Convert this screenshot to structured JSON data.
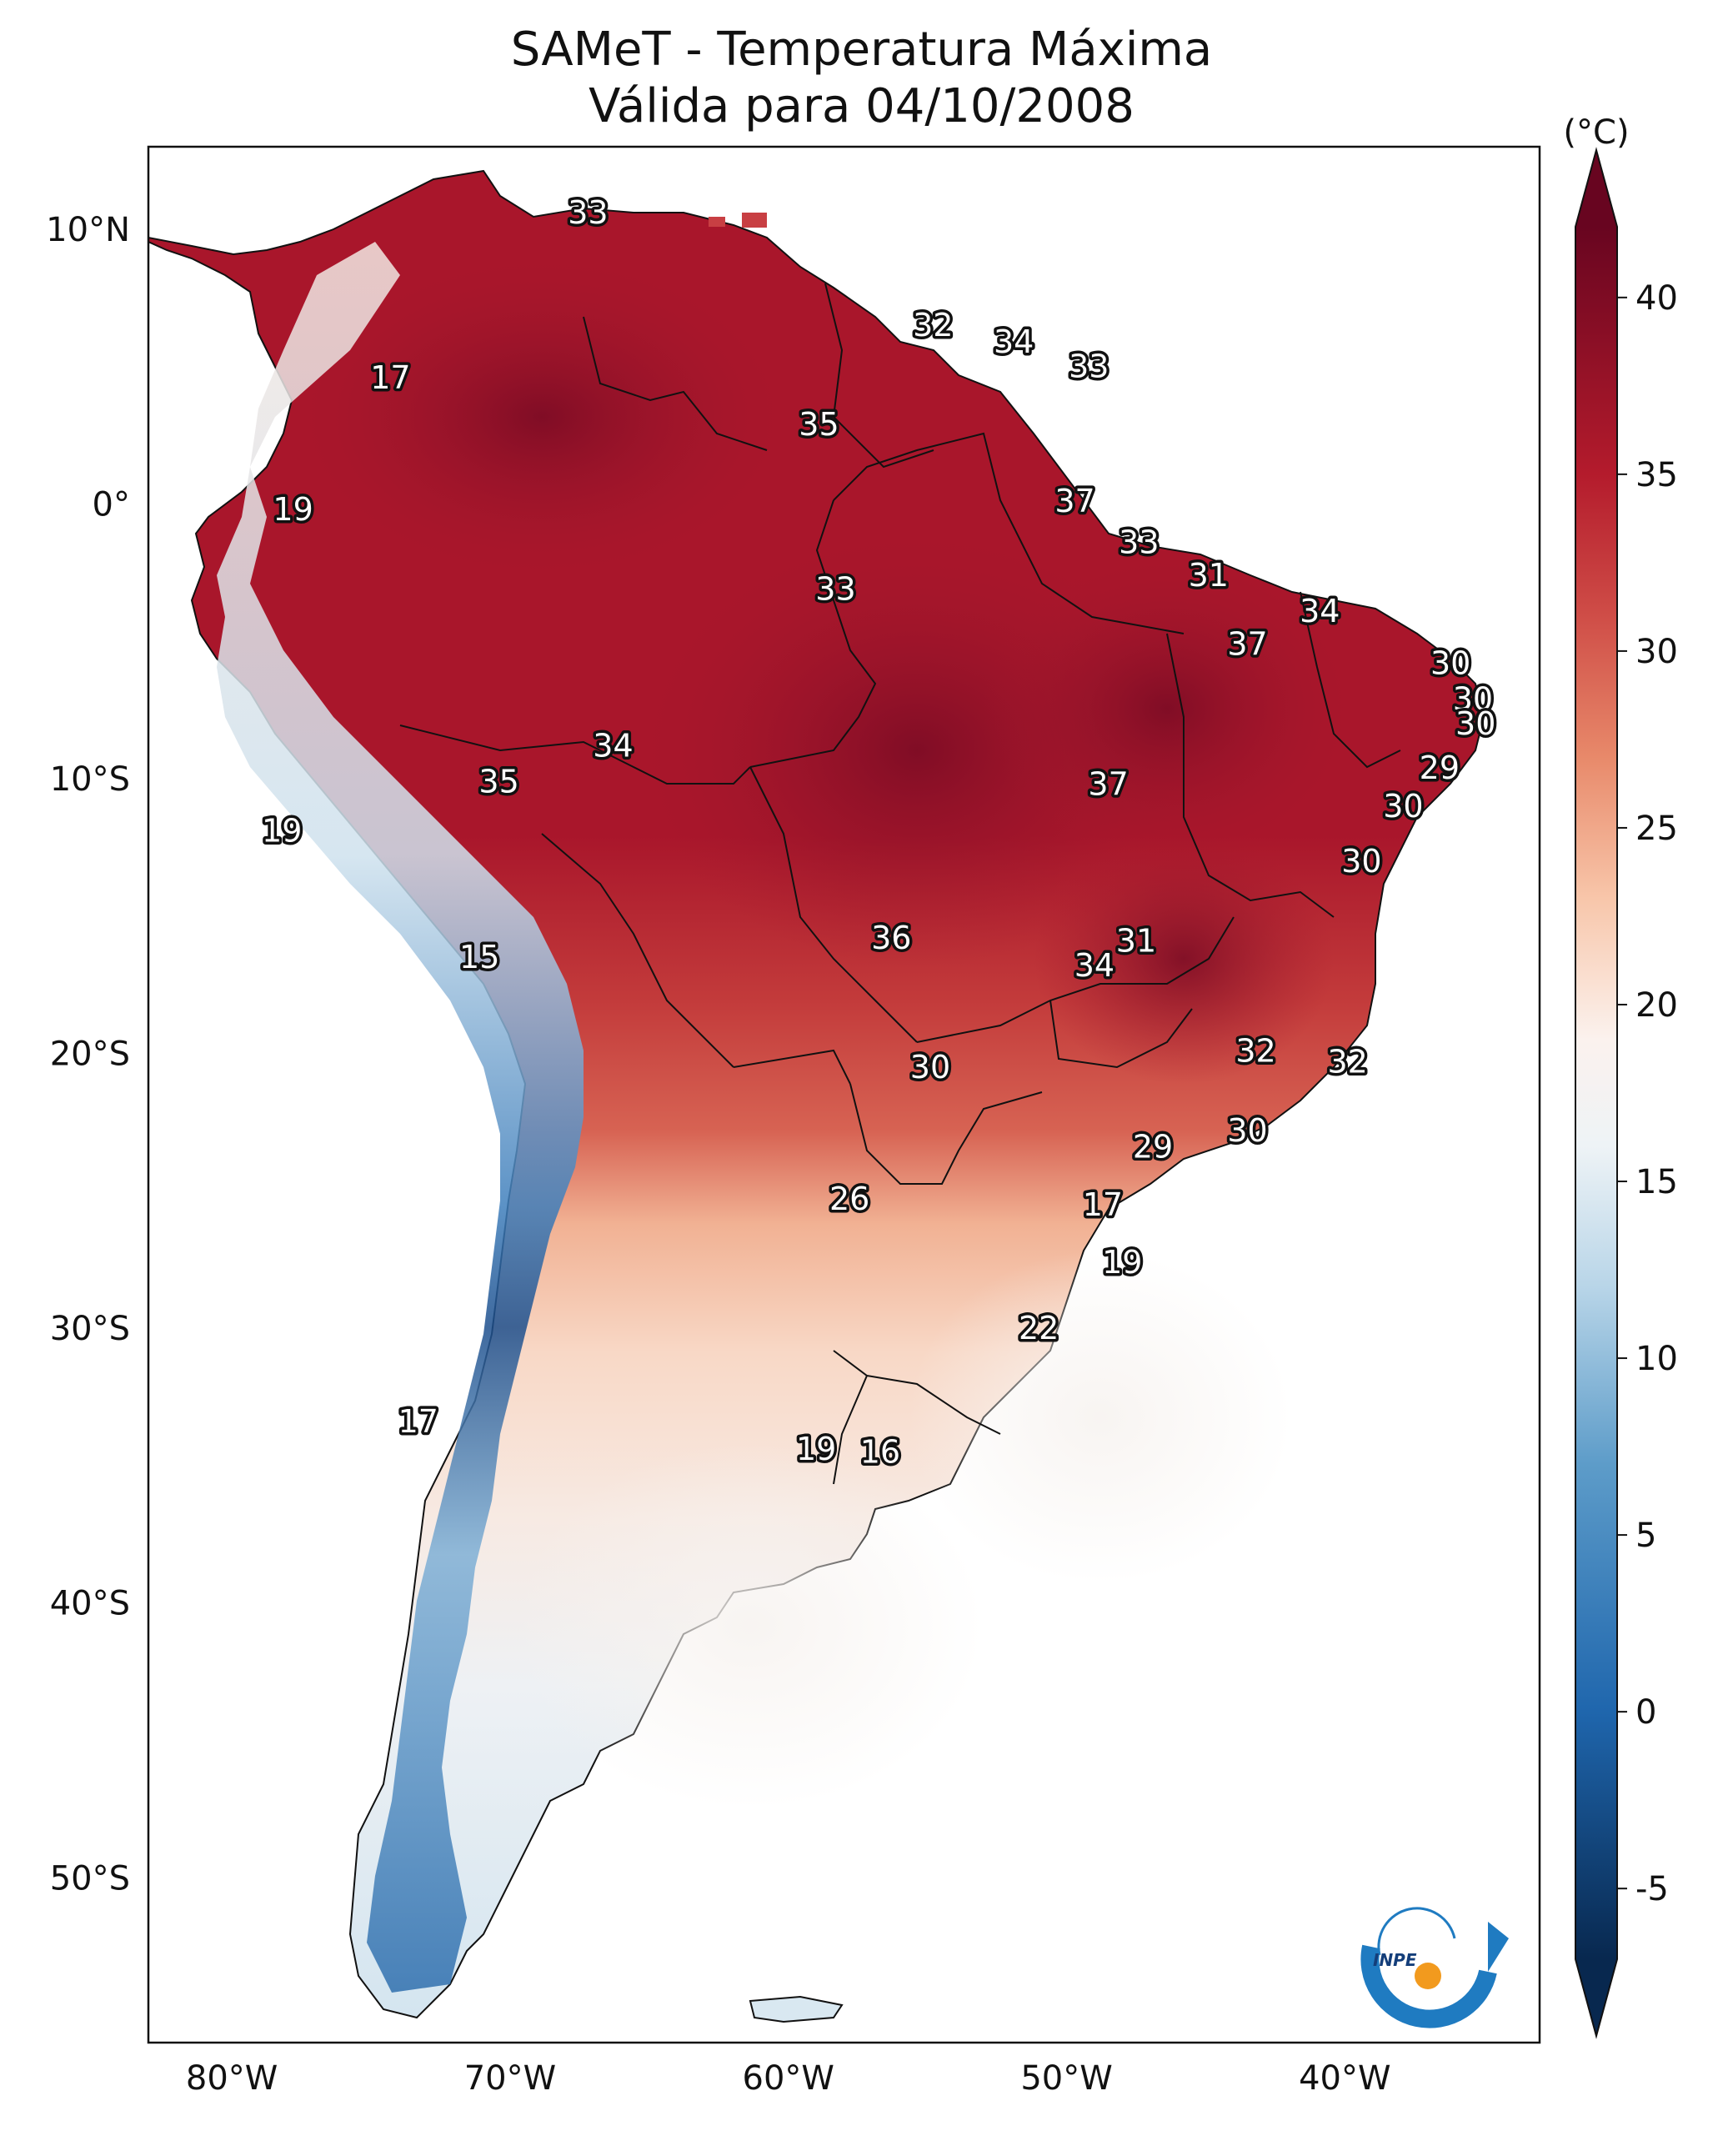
{
  "title": {
    "line1": "SAMeT - Temperatura Máxima",
    "line2": "Válida para 04/10/2008"
  },
  "map": {
    "lon_ticks": [
      "80°W",
      "70°W",
      "60°W",
      "50°W",
      "40°W"
    ],
    "lat_ticks": [
      "10°N",
      "0°",
      "10°S",
      "20°S",
      "30°S",
      "40°S",
      "50°S"
    ],
    "extent": {
      "lon_min": -83,
      "lon_max": -33,
      "lat_min": -56,
      "lat_max": 13
    },
    "point_labels": [
      {
        "lon": -67.2,
        "lat": 10.6,
        "value": "33"
      },
      {
        "lon": -74.3,
        "lat": 4.6,
        "value": "17"
      },
      {
        "lon": -77.8,
        "lat": -0.2,
        "value": "19"
      },
      {
        "lon": -54.8,
        "lat": 6.5,
        "value": "32"
      },
      {
        "lon": -51.9,
        "lat": 5.9,
        "value": "34"
      },
      {
        "lon": -49.2,
        "lat": 5.0,
        "value": "33"
      },
      {
        "lon": -58.9,
        "lat": 2.9,
        "value": "35"
      },
      {
        "lon": -49.7,
        "lat": 0.1,
        "value": "37"
      },
      {
        "lon": -47.4,
        "lat": -1.4,
        "value": "33"
      },
      {
        "lon": -44.9,
        "lat": -2.6,
        "value": "31"
      },
      {
        "lon": -58.3,
        "lat": -3.1,
        "value": "33"
      },
      {
        "lon": -40.9,
        "lat": -3.9,
        "value": "34"
      },
      {
        "lon": -43.5,
        "lat": -5.1,
        "value": "37"
      },
      {
        "lon": -36.2,
        "lat": -5.8,
        "value": "30"
      },
      {
        "lon": -35.4,
        "lat": -7.1,
        "value": "30"
      },
      {
        "lon": -35.3,
        "lat": -8.0,
        "value": "30"
      },
      {
        "lon": -66.3,
        "lat": -8.8,
        "value": "34"
      },
      {
        "lon": -70.4,
        "lat": -10.1,
        "value": "35"
      },
      {
        "lon": -48.5,
        "lat": -10.2,
        "value": "37"
      },
      {
        "lon": -36.6,
        "lat": -9.6,
        "value": "29"
      },
      {
        "lon": -37.9,
        "lat": -11.0,
        "value": "30"
      },
      {
        "lon": -39.4,
        "lat": -13.0,
        "value": "30"
      },
      {
        "lon": -78.2,
        "lat": -11.9,
        "value": "19"
      },
      {
        "lon": -56.3,
        "lat": -15.8,
        "value": "36"
      },
      {
        "lon": -47.5,
        "lat": -15.9,
        "value": "31"
      },
      {
        "lon": -49.0,
        "lat": -16.8,
        "value": "34"
      },
      {
        "lon": -71.1,
        "lat": -16.5,
        "value": "15"
      },
      {
        "lon": -54.9,
        "lat": -20.5,
        "value": "30"
      },
      {
        "lon": -43.2,
        "lat": -19.9,
        "value": "32"
      },
      {
        "lon": -39.9,
        "lat": -20.3,
        "value": "32"
      },
      {
        "lon": -43.5,
        "lat": -22.8,
        "value": "30"
      },
      {
        "lon": -46.9,
        "lat": -23.4,
        "value": "29"
      },
      {
        "lon": -57.8,
        "lat": -25.3,
        "value": "26"
      },
      {
        "lon": -48.7,
        "lat": -25.5,
        "value": "17"
      },
      {
        "lon": -48.0,
        "lat": -27.6,
        "value": "19"
      },
      {
        "lon": -51.0,
        "lat": -30.0,
        "value": "22"
      },
      {
        "lon": -73.3,
        "lat": -33.4,
        "value": "17"
      },
      {
        "lon": -59.0,
        "lat": -34.4,
        "value": "19"
      },
      {
        "lon": -56.7,
        "lat": -34.5,
        "value": "16"
      }
    ]
  },
  "colorbar": {
    "unit": "(°C)",
    "ticks": [
      "40",
      "35",
      "30",
      "25",
      "20",
      "15",
      "10",
      "5",
      "0",
      "-5"
    ],
    "min": -7,
    "max": 42,
    "stops": [
      {
        "v": -7,
        "c": "#08284f"
      },
      {
        "v": 0,
        "c": "#1f66ad"
      },
      {
        "v": 7,
        "c": "#5d9cc9"
      },
      {
        "v": 12,
        "c": "#b8d5e8"
      },
      {
        "v": 16,
        "c": "#eef3f6"
      },
      {
        "v": 19,
        "c": "#fbf2ee"
      },
      {
        "v": 23,
        "c": "#f8c6aa"
      },
      {
        "v": 27,
        "c": "#e8896a"
      },
      {
        "v": 31,
        "c": "#cf4d47"
      },
      {
        "v": 35,
        "c": "#b41b2c"
      },
      {
        "v": 42,
        "c": "#680520"
      }
    ]
  },
  "logo": {
    "text": "INPE"
  }
}
